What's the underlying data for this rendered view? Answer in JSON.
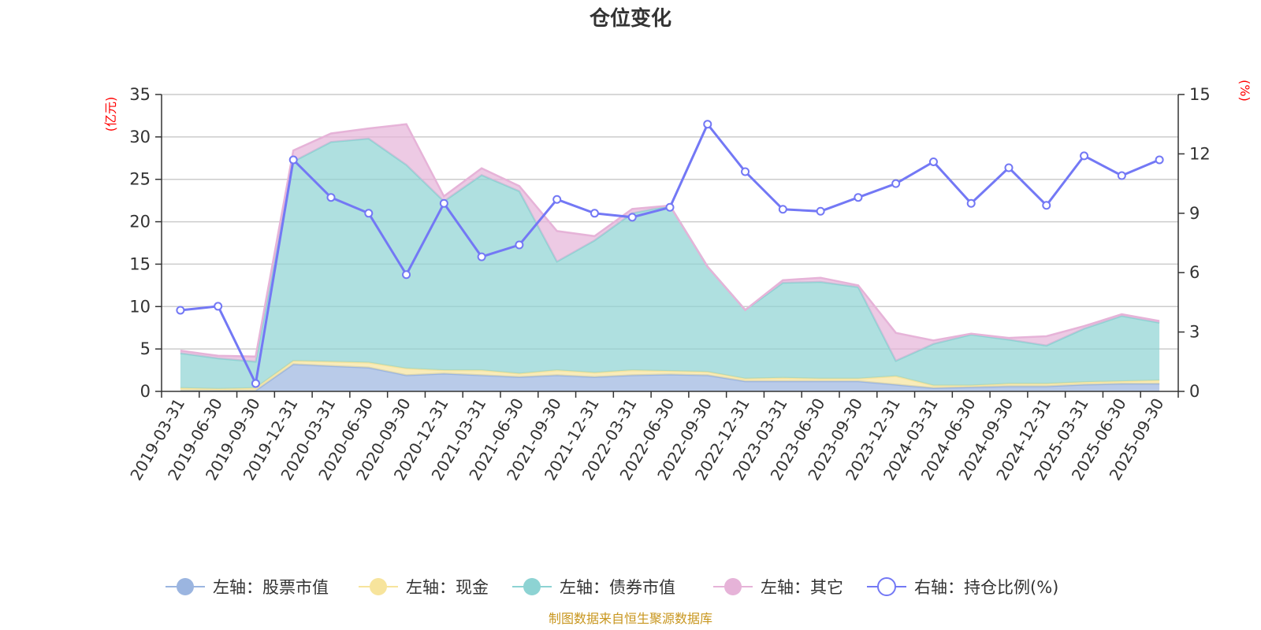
{
  "chart_data": {
    "type": "area",
    "title": "仓位变化",
    "left_axis": {
      "unit": "(亿元)",
      "ylim": [
        0,
        35
      ],
      "ticks": [
        0,
        5,
        10,
        15,
        20,
        25,
        30,
        35
      ]
    },
    "right_axis": {
      "unit": "(%)",
      "ylim": [
        0,
        15
      ],
      "ticks": [
        0,
        3,
        6,
        9,
        12,
        15
      ]
    },
    "categories": [
      "2019-03-31",
      "2019-06-30",
      "2019-09-30",
      "2019-12-31",
      "2020-03-31",
      "2020-06-30",
      "2020-09-30",
      "2020-12-31",
      "2021-03-31",
      "2021-06-30",
      "2021-09-30",
      "2021-12-31",
      "2022-03-31",
      "2022-06-30",
      "2022-09-30",
      "2022-12-31",
      "2023-03-31",
      "2023-06-30",
      "2023-09-30",
      "2023-12-31",
      "2024-03-31",
      "2024-06-30",
      "2024-09-30",
      "2024-12-31",
      "2025-03-31",
      "2025-06-30",
      "2025-09-30"
    ],
    "series": [
      {
        "name": "左轴：股票市值",
        "axis": "left",
        "kind": "stacked-area",
        "color": "#9bb5e0",
        "values": [
          0.1,
          0.1,
          0.1,
          3.2,
          3.0,
          2.8,
          1.9,
          2.1,
          1.9,
          1.7,
          1.9,
          1.7,
          1.9,
          2.0,
          1.9,
          1.2,
          1.2,
          1.2,
          1.2,
          0.8,
          0.4,
          0.5,
          0.6,
          0.6,
          0.8,
          0.9,
          0.9
        ]
      },
      {
        "name": "左轴：现金",
        "axis": "left",
        "kind": "stacked-area",
        "color": "#f7e49c",
        "values": [
          0.3,
          0.2,
          0.3,
          0.4,
          0.5,
          0.6,
          0.8,
          0.4,
          0.6,
          0.4,
          0.6,
          0.5,
          0.6,
          0.4,
          0.4,
          0.3,
          0.4,
          0.3,
          0.3,
          1.0,
          0.3,
          0.2,
          0.3,
          0.3,
          0.3,
          0.3,
          0.4
        ]
      },
      {
        "name": "左轴：债券市值",
        "axis": "left",
        "kind": "stacked-area",
        "color": "#8dd3d3",
        "values": [
          4.1,
          3.6,
          3.1,
          23.5,
          25.9,
          26.4,
          24.0,
          19.9,
          23.0,
          21.5,
          12.8,
          15.6,
          18.5,
          19.5,
          12.4,
          8.1,
          11.2,
          11.4,
          10.8,
          1.8,
          4.9,
          6.0,
          5.2,
          4.5,
          6.3,
          7.7,
          6.8
        ]
      },
      {
        "name": "左轴：其它",
        "axis": "left",
        "kind": "stacked-area",
        "color": "#e6b3d8",
        "values": [
          0.3,
          0.3,
          0.6,
          1.3,
          1.0,
          1.2,
          4.8,
          0.6,
          0.8,
          0.6,
          3.6,
          0.5,
          0.5,
          0.0,
          0.0,
          0.0,
          0.3,
          0.5,
          0.2,
          3.3,
          0.4,
          0.1,
          0.2,
          1.1,
          0.3,
          0.2,
          0.2
        ]
      },
      {
        "name": "右轴：持仓比例(%)",
        "axis": "right",
        "kind": "line",
        "color": "#7378f5",
        "values": [
          4.1,
          4.3,
          0.4,
          11.7,
          9.8,
          9.0,
          5.9,
          9.5,
          6.8,
          7.4,
          9.7,
          9.0,
          8.8,
          9.3,
          13.5,
          11.1,
          9.2,
          9.1,
          9.8,
          10.5,
          11.6,
          9.5,
          11.3,
          9.4,
          11.9,
          10.9,
          11.7
        ]
      }
    ],
    "legend": [
      "左轴：股票市值",
      "左轴：现金",
      "左轴：债券市值",
      "左轴：其它",
      "右轴：持仓比例(%)"
    ],
    "legend_position": "bottom",
    "grid": true
  },
  "footer": {
    "source": "制图数据来自恒生聚源数据库"
  }
}
